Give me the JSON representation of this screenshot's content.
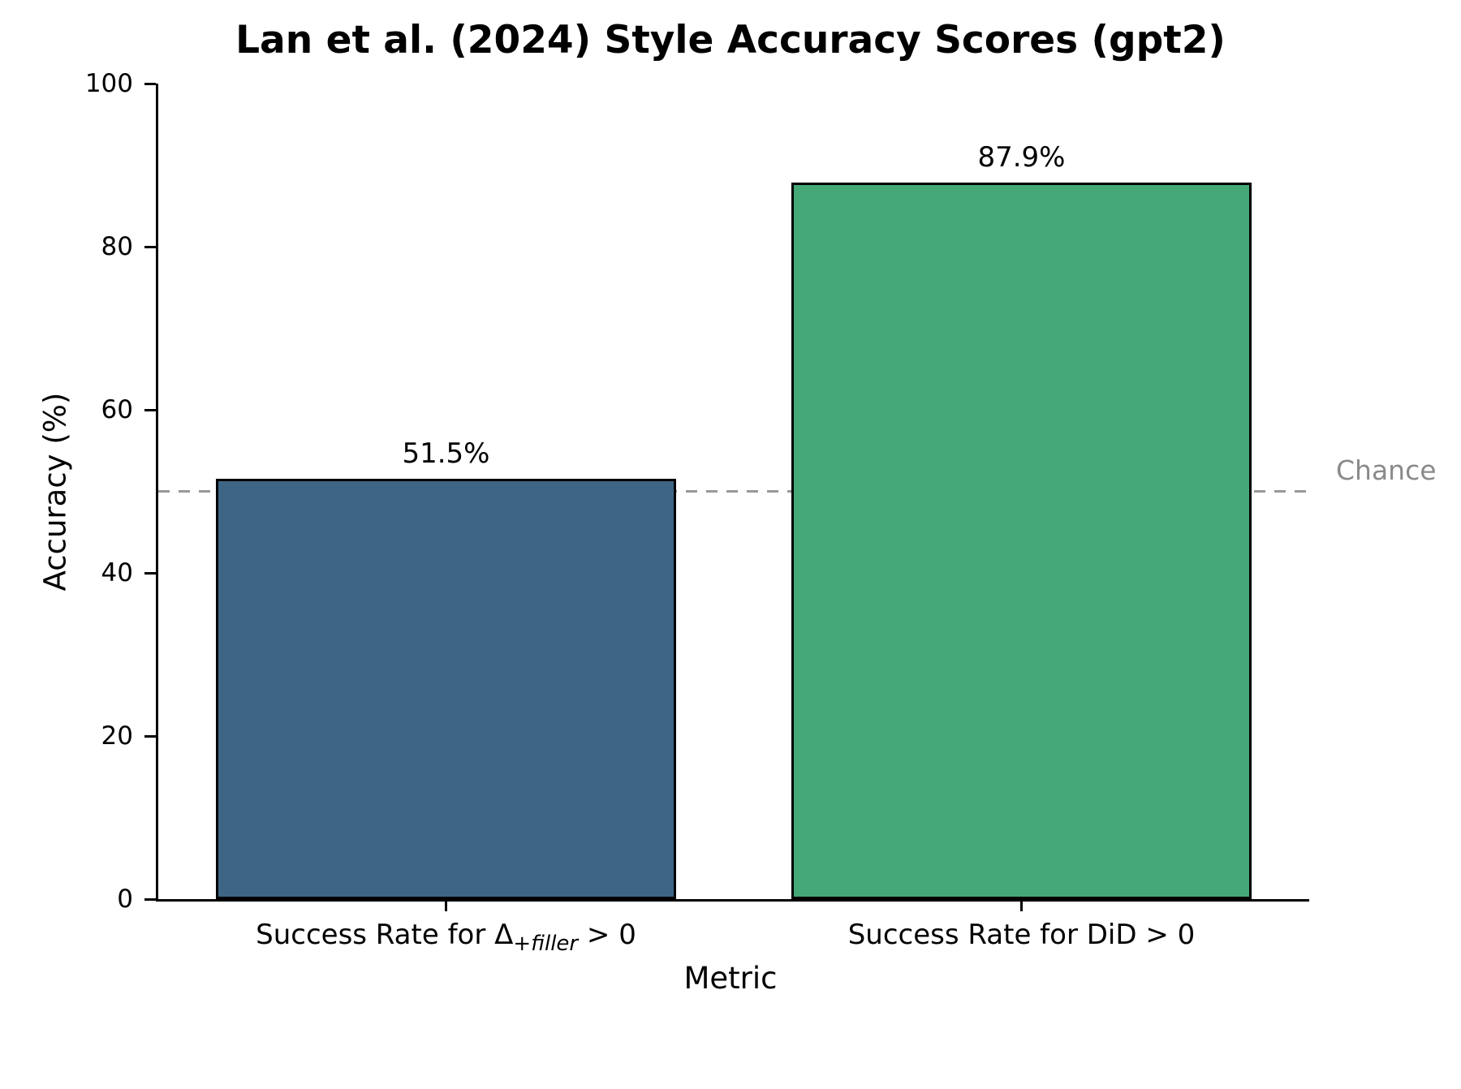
{
  "chart_data": {
    "type": "bar",
    "title": "Lan et al. (2024) Style Accuracy Scores (gpt2)",
    "xlabel": "Metric",
    "ylabel": "Accuracy (%)",
    "ylim": [
      0,
      100
    ],
    "yticks": [
      0,
      20,
      40,
      60,
      80,
      100
    ],
    "categories": [
      "Success Rate for Δ_{+filler} > 0",
      "Success Rate for DiD > 0"
    ],
    "values": [
      51.5,
      87.9
    ],
    "grid": false,
    "legend": "none",
    "bar_edge_color": "#000000",
    "bars": [
      {
        "category_pre": "Success Rate for Δ",
        "category_sub": "+filler",
        "category_post": " > 0",
        "value": 51.5,
        "label": "51.5%",
        "color": "#3E6583"
      },
      {
        "category_pre": "Success Rate for DiD > 0",
        "category_sub": "",
        "category_post": "",
        "value": 87.9,
        "label": "87.9%",
        "color": "#45A877"
      }
    ],
    "reference_line": {
      "value": 50,
      "label": "Chance",
      "color": "#999999",
      "label_color": "#8a8a8a",
      "style": "dashed"
    }
  }
}
